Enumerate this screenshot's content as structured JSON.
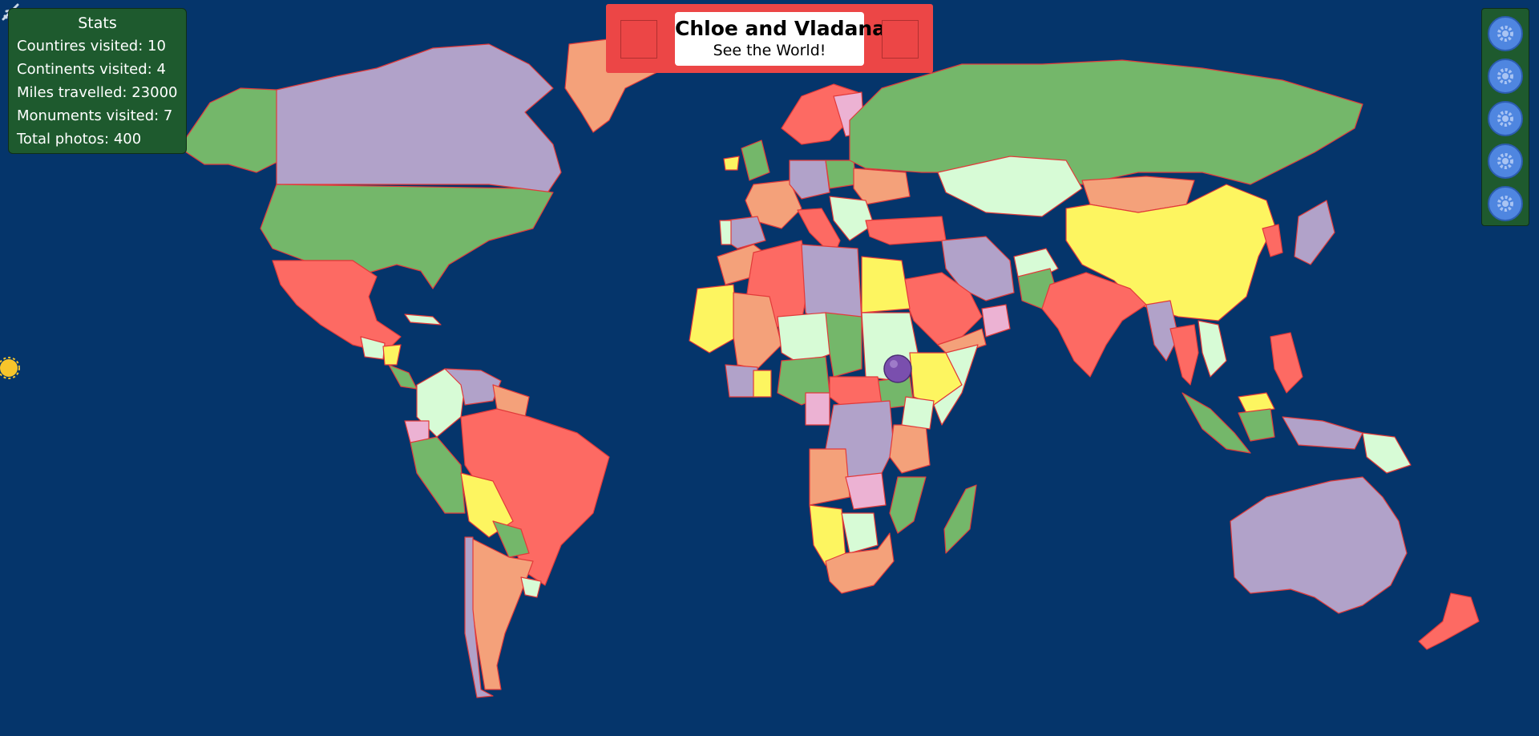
{
  "app": {
    "title": "Chloe and Vladana",
    "subtitle": "See the World!"
  },
  "stats": {
    "heading": "Stats",
    "rows": [
      {
        "label": "Countires visited:",
        "value": "10"
      },
      {
        "label": "Continents visited:",
        "value": "4"
      },
      {
        "label": "Miles travelled:",
        "value": "23000"
      },
      {
        "label": "Monuments visited:",
        "value": "7"
      },
      {
        "label": "Total photos:",
        "value": "400"
      }
    ]
  },
  "colors": {
    "ocean": "#05356b",
    "panel": "#1e5a2e",
    "header": "#ec4646",
    "border": "#e23a3a",
    "palette": [
      "#74b76a",
      "#b1a2c9",
      "#fd6a63",
      "#f4a17a",
      "#fdf560",
      "#d7fbd6",
      "#ecb2d3"
    ]
  },
  "side_buttons": [
    {
      "icon": "gear-icon"
    },
    {
      "icon": "gear-icon"
    },
    {
      "icon": "gear-icon"
    },
    {
      "icon": "gear-icon"
    },
    {
      "icon": "gear-icon"
    }
  ],
  "decorations": {
    "sun": "sun-icon",
    "plane": "plane-icon",
    "marker": "location-marker-icon"
  }
}
